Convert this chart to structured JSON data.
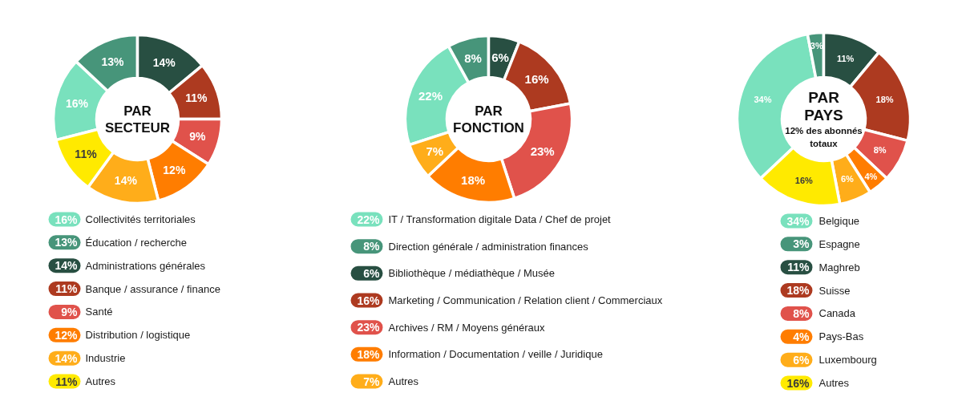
{
  "chart_data": [
    {
      "type": "donut",
      "title": "PAR SECTEUR",
      "categories": [
        "Collectivités territoriales",
        "Éducation / recherche",
        "Administrations générales",
        "Banque / assurance / finance",
        "Santé",
        "Distribution / logistique",
        "Industrie",
        "Autres"
      ],
      "values": [
        16,
        13,
        14,
        11,
        9,
        12,
        14,
        11
      ],
      "value_labels": [
        "16%",
        "13%",
        "14%",
        "11%",
        "9%",
        "12%",
        "14%",
        "11%"
      ],
      "colors": [
        "#79e1bd",
        "#47957a",
        "#284f42",
        "#ad3a20",
        "#e0524b",
        "#ff7d00",
        "#ffad1a",
        "#ffea00"
      ],
      "legend": "bottom"
    },
    {
      "type": "donut",
      "title": "PAR FONCTION",
      "categories": [
        "IT / Transformation digitale  Data / Chef de projet",
        "Direction générale / administration finances",
        "Bibliothèque / médiathèque / Musée",
        "Marketing / Communication / Relation client / Commerciaux",
        "Archives / RM / Moyens généraux",
        "Information / Documentation / veille / Juridique",
        "Autres"
      ],
      "values": [
        22,
        8,
        6,
        16,
        23,
        18,
        7
      ],
      "value_labels": [
        "22%",
        "8%",
        "6%",
        "16%",
        "23%",
        "18%",
        "7%"
      ],
      "colors": [
        "#79e1bd",
        "#47957a",
        "#284f42",
        "#ad3a20",
        "#e0524b",
        "#ff7d00",
        "#ffad1a"
      ],
      "legend": "bottom"
    },
    {
      "type": "donut",
      "title": "PAR PAYS",
      "subtitle": "12% des abonnés totaux",
      "categories": [
        "Belgique",
        "Espagne",
        "Maghreb",
        "Suisse",
        "Canada",
        "Pays-Bas",
        "Luxembourg",
        "Autres"
      ],
      "values": [
        34,
        3,
        11,
        18,
        8,
        4,
        6,
        16
      ],
      "value_labels": [
        "34%",
        "3%",
        "11%",
        "18%",
        "8%",
        "4%",
        "6%",
        "16%"
      ],
      "colors": [
        "#79e1bd",
        "#47957a",
        "#284f42",
        "#ad3a20",
        "#e0524b",
        "#ff7d00",
        "#ffad1a",
        "#ffea00"
      ],
      "legend": "bottom"
    }
  ]
}
